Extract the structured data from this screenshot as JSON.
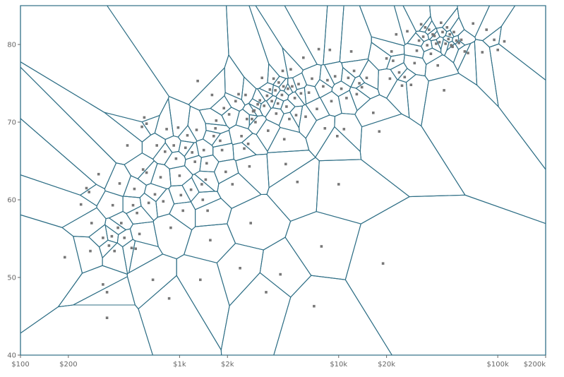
{
  "chart_data": {
    "type": "scatter",
    "title": "",
    "xlabel": "",
    "ylabel": "",
    "x_scale": "log",
    "xlim": [
      100,
      200000
    ],
    "ylim": [
      40,
      85
    ],
    "voronoi": true,
    "grid": false,
    "colors": {
      "cell_stroke": "#2f6f86",
      "point": "#777777",
      "tick_text": "#666666"
    },
    "x_ticks": [
      {
        "value": 100,
        "label": "$100"
      },
      {
        "value": 200,
        "label": "$200"
      },
      {
        "value": 1000,
        "label": "$1k"
      },
      {
        "value": 2000,
        "label": "$2k"
      },
      {
        "value": 10000,
        "label": "$10k"
      },
      {
        "value": 20000,
        "label": "$20k"
      },
      {
        "value": 100000,
        "label": "$100k"
      },
      {
        "value": 200000,
        "label": "$200k"
      }
    ],
    "y_ticks": [
      {
        "value": 40,
        "label": "40"
      },
      {
        "value": 50,
        "label": "50"
      },
      {
        "value": 60,
        "label": "60"
      },
      {
        "value": 70,
        "label": "70"
      },
      {
        "value": 80,
        "label": "80"
      }
    ],
    "points": [
      [
        190,
        52.6
      ],
      [
        240,
        59.4
      ],
      [
        260,
        61.5
      ],
      [
        280,
        57.0
      ],
      [
        275,
        53.4
      ],
      [
        270,
        61.0
      ],
      [
        310,
        63.3
      ],
      [
        330,
        49.1
      ],
      [
        350,
        48.1
      ],
      [
        350,
        44.8
      ],
      [
        330,
        55.1
      ],
      [
        360,
        54.1
      ],
      [
        375,
        55.3
      ],
      [
        380,
        59.3
      ],
      [
        390,
        53.4
      ],
      [
        410,
        56.4
      ],
      [
        430,
        57.0
      ],
      [
        420,
        62.1
      ],
      [
        450,
        55.1
      ],
      [
        470,
        67.0
      ],
      [
        500,
        53.8
      ],
      [
        510,
        59.3
      ],
      [
        520,
        61.4
      ],
      [
        540,
        58.3
      ],
      [
        560,
        55.6
      ],
      [
        530,
        53.7
      ],
      [
        590,
        63.9
      ],
      [
        580,
        69.4
      ],
      [
        600,
        70.6
      ],
      [
        620,
        69.8
      ],
      [
        620,
        63.5
      ],
      [
        640,
        59.6
      ],
      [
        680,
        49.7
      ],
      [
        700,
        60.7
      ],
      [
        720,
        67.0
      ],
      [
        760,
        62.9
      ],
      [
        790,
        59.8
      ],
      [
        810,
        66.2
      ],
      [
        830,
        69.1
      ],
      [
        860,
        47.3
      ],
      [
        880,
        56.4
      ],
      [
        920,
        67.0
      ],
      [
        950,
        65.3
      ],
      [
        980,
        69.3
      ],
      [
        1000,
        63.1
      ],
      [
        1020,
        60.6
      ],
      [
        1050,
        58.6
      ],
      [
        1090,
        66.7
      ],
      [
        1120,
        68.3
      ],
      [
        1180,
        61.3
      ],
      [
        1200,
        66.1
      ],
      [
        1250,
        64.9
      ],
      [
        1280,
        69.0
      ],
      [
        1300,
        75.3
      ],
      [
        1350,
        49.7
      ],
      [
        1380,
        62.0
      ],
      [
        1400,
        60.0
      ],
      [
        1420,
        66.4
      ],
      [
        1460,
        62.6
      ],
      [
        1480,
        64.7
      ],
      [
        1500,
        58.6
      ],
      [
        1560,
        54.8
      ],
      [
        1600,
        73.5
      ],
      [
        1640,
        68.2
      ],
      [
        1680,
        69.2
      ],
      [
        1700,
        70.2
      ],
      [
        1800,
        67.6
      ],
      [
        1850,
        66.4
      ],
      [
        1900,
        71.8
      ],
      [
        1950,
        63.6
      ],
      [
        2050,
        71.0
      ],
      [
        2150,
        62.0
      ],
      [
        2250,
        72.7
      ],
      [
        2350,
        73.6
      ],
      [
        2400,
        51.2
      ],
      [
        2450,
        68.2
      ],
      [
        2550,
        66.6
      ],
      [
        2600,
        73.5
      ],
      [
        2650,
        70.4
      ],
      [
        2700,
        67.2
      ],
      [
        2750,
        64.3
      ],
      [
        2800,
        57.0
      ],
      [
        2850,
        70.4
      ],
      [
        2900,
        71.4
      ],
      [
        2950,
        71.5
      ],
      [
        3000,
        70.0
      ],
      [
        3100,
        72.3
      ],
      [
        3200,
        72.8
      ],
      [
        3300,
        75.7
      ],
      [
        3400,
        72.1
      ],
      [
        3500,
        48.1
      ],
      [
        3550,
        73.4
      ],
      [
        3600,
        68.9
      ],
      [
        3700,
        74.2
      ],
      [
        3800,
        72.7
      ],
      [
        3900,
        75.6
      ],
      [
        4000,
        74.1
      ],
      [
        4050,
        71.1
      ],
      [
        4150,
        72.4
      ],
      [
        4200,
        75.1
      ],
      [
        4300,
        50.4
      ],
      [
        4400,
        73.5
      ],
      [
        4450,
        76.6
      ],
      [
        4500,
        74.6
      ],
      [
        4550,
        67.8
      ],
      [
        4650,
        64.6
      ],
      [
        4700,
        72.0
      ],
      [
        4800,
        74.3
      ],
      [
        4900,
        70.4
      ],
      [
        5000,
        76.8
      ],
      [
        5100,
        74.6
      ],
      [
        5300,
        73.1
      ],
      [
        5400,
        70.9
      ],
      [
        5500,
        62.3
      ],
      [
        5600,
        74.9
      ],
      [
        5800,
        73.7
      ],
      [
        6000,
        78.3
      ],
      [
        6200,
        70.7
      ],
      [
        6500,
        73.8
      ],
      [
        6800,
        75.6
      ],
      [
        7000,
        46.3
      ],
      [
        7300,
        71.7
      ],
      [
        7500,
        79.4
      ],
      [
        7800,
        54.0
      ],
      [
        8000,
        74.6
      ],
      [
        8200,
        69.2
      ],
      [
        8500,
        75.4
      ],
      [
        8800,
        79.3
      ],
      [
        9000,
        72.7
      ],
      [
        9500,
        75.9
      ],
      [
        9800,
        68.2
      ],
      [
        10000,
        62.0
      ],
      [
        10400,
        74.3
      ],
      [
        10800,
        69.1
      ],
      [
        11200,
        73.1
      ],
      [
        11500,
        75.7
      ],
      [
        12000,
        79.1
      ],
      [
        12500,
        76.6
      ],
      [
        13000,
        73.6
      ],
      [
        13500,
        75.0
      ],
      [
        14000,
        74.5
      ],
      [
        15000,
        75.7
      ],
      [
        16500,
        71.2
      ],
      [
        18000,
        68.8
      ],
      [
        19000,
        51.8
      ],
      [
        20000,
        78.2
      ],
      [
        21000,
        75.6
      ],
      [
        21500,
        79.1
      ],
      [
        22000,
        77.9
      ],
      [
        23000,
        81.3
      ],
      [
        24000,
        76.4
      ],
      [
        25000,
        74.7
      ],
      [
        26000,
        75.8
      ],
      [
        27000,
        81.7
      ],
      [
        28500,
        74.8
      ],
      [
        30000,
        77.6
      ],
      [
        31000,
        79.2
      ],
      [
        32000,
        80.5
      ],
      [
        33000,
        82.6
      ],
      [
        34000,
        81.0
      ],
      [
        35000,
        82.2
      ],
      [
        36000,
        79.9
      ],
      [
        37000,
        81.9
      ],
      [
        38000,
        78.8
      ],
      [
        39000,
        81.3
      ],
      [
        40000,
        81.1
      ],
      [
        41000,
        80.1
      ],
      [
        42000,
        77.3
      ],
      [
        43000,
        80.3
      ],
      [
        44000,
        82.8
      ],
      [
        45000,
        81.6
      ],
      [
        46000,
        74.1
      ],
      [
        47000,
        80.1
      ],
      [
        48000,
        82.2
      ],
      [
        49000,
        80.7
      ],
      [
        50000,
        81.3
      ],
      [
        51000,
        79.9
      ],
      [
        52000,
        79.7
      ],
      [
        53000,
        81.6
      ],
      [
        55000,
        80.5
      ],
      [
        57000,
        80.2
      ],
      [
        59000,
        80.6
      ],
      [
        62000,
        79.1
      ],
      [
        65000,
        78.9
      ],
      [
        70000,
        82.7
      ],
      [
        80000,
        79.0
      ],
      [
        85000,
        81.9
      ],
      [
        95000,
        80.6
      ],
      [
        100000,
        79.3
      ],
      [
        110000,
        80.4
      ]
    ]
  }
}
